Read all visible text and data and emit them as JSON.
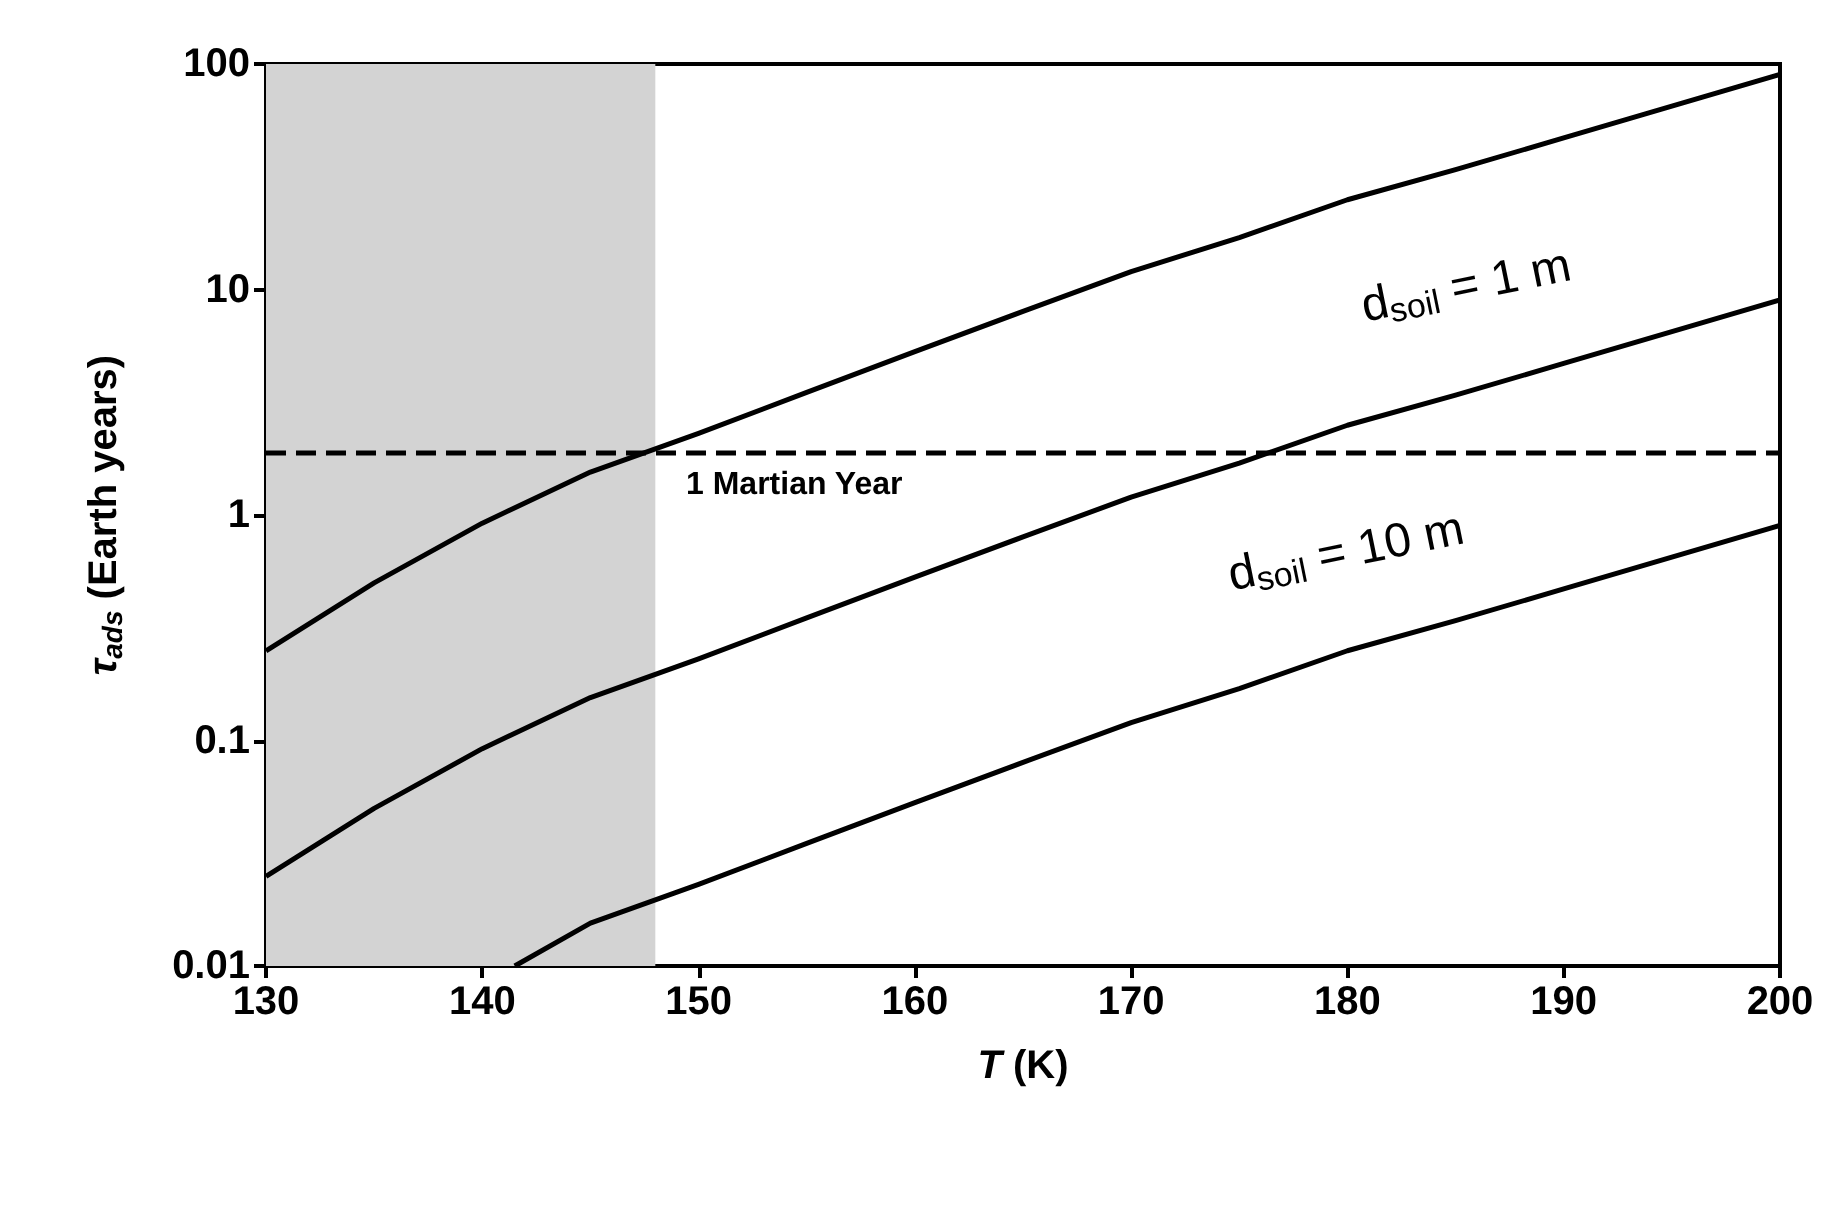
{
  "chart_data": {
    "type": "line",
    "xlabel": "T (K)",
    "ylabel": "τ$_{ads}$ (Earth years)",
    "log": "y",
    "xlim": [
      130,
      200
    ],
    "xticks": [
      130,
      140,
      150,
      160,
      170,
      180,
      190,
      200
    ],
    "ylim": [
      0.01,
      100
    ],
    "yticks": [
      0.01,
      0.1,
      1,
      10,
      100
    ],
    "grid": false,
    "marker": "none",
    "line_style": "solid",
    "series": [
      {
        "color": "#000000",
        "x": [
          130,
          135,
          140,
          145,
          150,
          155,
          160,
          165,
          170,
          175,
          180,
          185,
          190,
          195,
          200
        ],
        "values": [
          0.25,
          0.5,
          0.92,
          1.55,
          2.3,
          3.5,
          5.3,
          8,
          12,
          17,
          25,
          34,
          47,
          65,
          90
        ]
      },
      {
        "color": "#000000",
        "x": [
          130,
          135,
          140,
          145,
          150,
          155,
          160,
          165,
          170,
          175,
          180,
          185,
          190,
          195,
          200
        ],
        "values": [
          0.025,
          0.05,
          0.092,
          0.155,
          0.23,
          0.35,
          0.53,
          0.8,
          1.2,
          1.7,
          2.5,
          3.4,
          4.7,
          6.5,
          9
        ]
      },
      {
        "color": "#000000",
        "x": [
          141.5,
          145,
          150,
          155,
          160,
          165,
          170,
          175,
          180,
          185,
          190,
          195,
          200
        ],
        "values": [
          0.01,
          0.0155,
          0.023,
          0.035,
          0.053,
          0.08,
          0.12,
          0.17,
          0.25,
          0.34,
          0.47,
          0.65,
          0.9
        ]
      }
    ],
    "ref_lines": [
      {
        "axis": "y",
        "value": 1.88,
        "label": "1 Martian Year",
        "color": "#000000",
        "line_style": "dashed"
      }
    ],
    "bands": [
      {
        "axis": "x",
        "from": 130,
        "to": 148,
        "color": "#d3d3d3"
      }
    ],
    "annotations": [
      "d$_{soil}$ = 1 m",
      "d$_{soil}$ = 10 m"
    ]
  }
}
